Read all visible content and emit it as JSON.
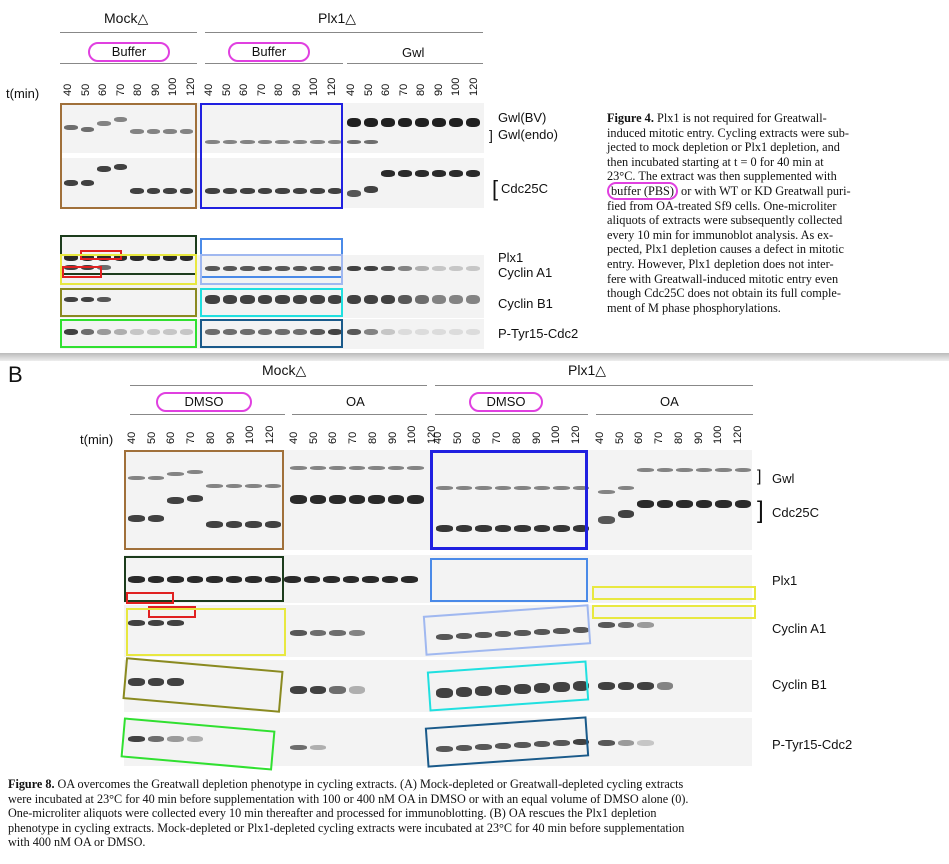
{
  "panelA": {
    "mock_label": "Mock△",
    "plx1_label": "Plx1△",
    "buffer1": "Buffer",
    "buffer2": "Buffer",
    "gwl": "Gwl",
    "tlabel": "t(min)",
    "times": [
      "40",
      "50",
      "60",
      "70",
      "80",
      "90",
      "100",
      "120"
    ],
    "row_labels": {
      "gwl_bv": "Gwl(BV)",
      "gwl_endo": "Gwl(endo)",
      "cdc25c": "Cdc25C",
      "plx1": "Plx1",
      "cyclin_a1": "Cyclin A1",
      "cyclin_b1": "Cyclin B1",
      "ptyr": "P-Tyr15-Cdc2"
    }
  },
  "caption4": {
    "title": "Figure 4.",
    "l1": "Plx1 is not required for Greatwall-",
    "l2": "induced mitotic entry. Cycling extracts were sub-",
    "l3": "jected to mock depletion or Plx1 depletion, and",
    "l4": "then incubated starting at t = 0 for 40 min at",
    "l5": "23°C. The extract was then supplemented with",
    "l6a": "buffer (PBS)",
    "l6b": " or with WT or KD Greatwall puri-",
    "l7": "fied from OA-treated Sf9 cells. One-microliter",
    "l8": "aliquots of extracts were subsequently collected",
    "l9": "every 10 min for immunoblot analysis. As ex-",
    "l10": "pected, Plx1 depletion causes a defect in mitotic",
    "l11": "entry. However, Plx1 depletion does not inter-",
    "l12": "fere with Greatwall-induced mitotic entry even",
    "l13": "though Cdc25C does not obtain its full comple-",
    "l14": "ment of M phase phosphorylations."
  },
  "panelB": {
    "letter": "B",
    "mock_label": "Mock△",
    "plx1_label": "Plx1△",
    "dmso1": "DMSO",
    "oa1": "OA",
    "dmso2": "DMSO",
    "oa2": "OA",
    "tlabel": "t(min)",
    "times": [
      "40",
      "50",
      "60",
      "70",
      "80",
      "90",
      "100",
      "120"
    ],
    "row_labels": {
      "gwl": "Gwl",
      "cdc25c": "Cdc25C",
      "plx1": "Plx1",
      "cyclin_a1": "Cyclin A1",
      "cyclin_b1": "Cyclin B1",
      "ptyr": "P-Tyr15-Cdc2"
    }
  },
  "caption8": {
    "title": "Figure 8.",
    "l1": "OA overcomes the Greatwall depletion phenotype in cycling extracts. (A) Mock-depleted or Greatwall-depleted cycling extracts",
    "l2": "were incubated at 23°C for 40 min before supplementation with 100 or 400 nM OA in DMSO or with an equal volume of DMSO alone (0).",
    "l3": "One-microliter aliquots were collected every 10 min thereafter and processed for immunoblotting. (B) OA rescues the Plx1 depletion",
    "l4": "phenotype in cycling extracts. Mock-depleted or Plx1-depleted cycling extracts were incubated at 23°C for 40 min before supplementation",
    "l5": "with 400 nM OA or DMSO."
  },
  "colors": {
    "pink": "#e040e0",
    "brown": "#a0703a",
    "blue": "#2020e0",
    "darkgreen": "#1c3c1c",
    "lightblue": "#4a8ae8",
    "yellow": "#e8e840",
    "olive": "#8a8a20",
    "cyan": "#20e0e0",
    "green": "#30e030",
    "steel": "#1a5a8a",
    "red": "#e02020"
  }
}
